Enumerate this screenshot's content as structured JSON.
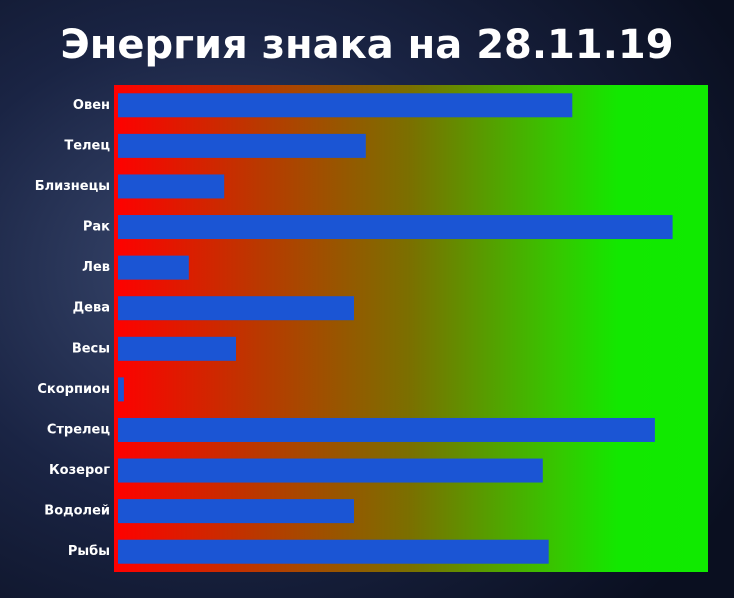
{
  "chart_data": {
    "type": "bar",
    "orientation": "horizontal",
    "title": "Энергия знака на 28.11.19",
    "categories": [
      "Овен",
      "Телец",
      "Близнецы",
      "Рак",
      "Лев",
      "Дева",
      "Весы",
      "Скорпион",
      "Стрелец",
      "Козерог",
      "Водолей",
      "Рыбы"
    ],
    "values": [
      77,
      42,
      18,
      94,
      12,
      40,
      20,
      1,
      91,
      72,
      40,
      73
    ],
    "color": "#1b55d4",
    "xlim": [
      0,
      100
    ]
  }
}
